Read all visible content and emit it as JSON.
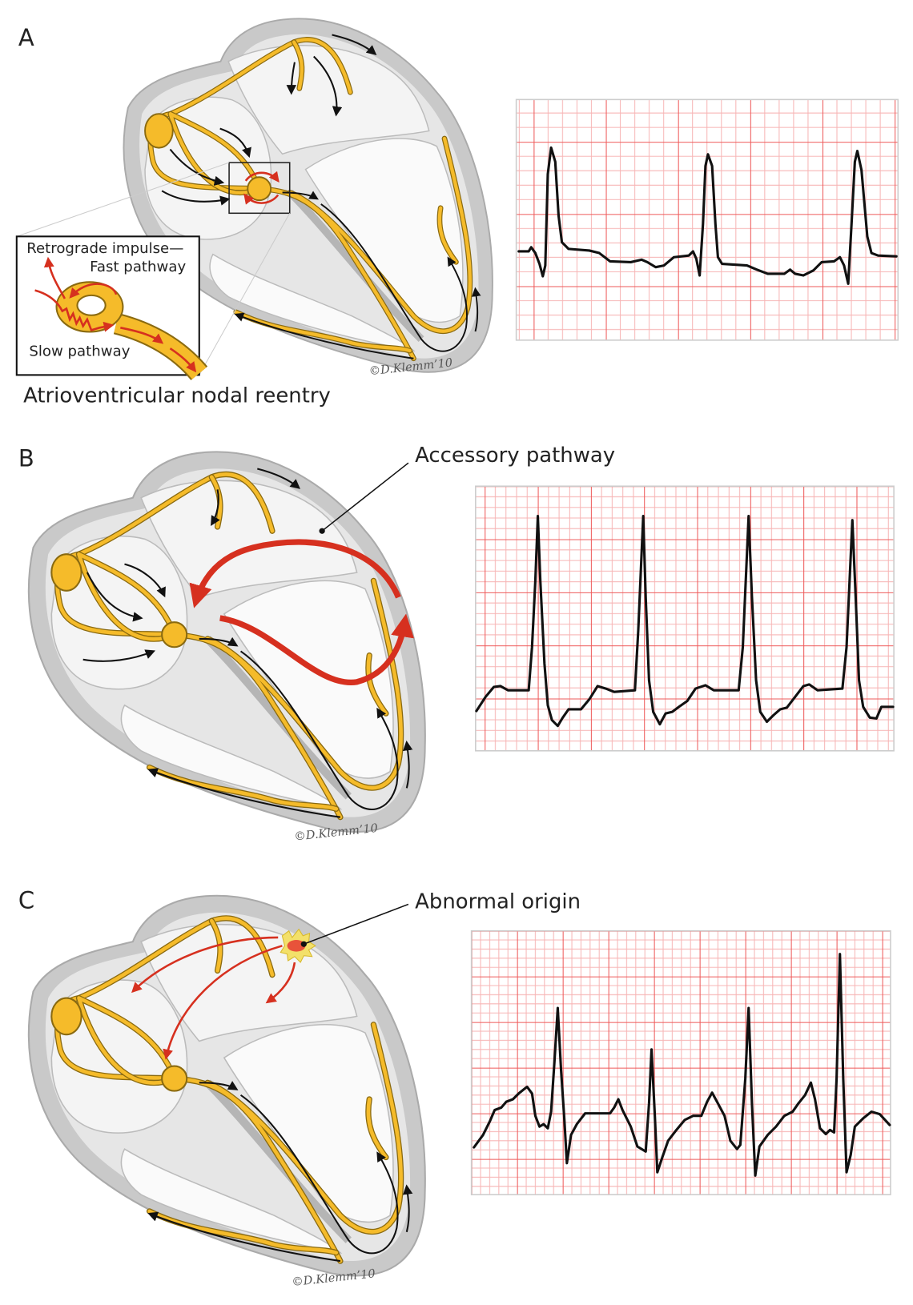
{
  "panels": [
    {
      "letter": "A",
      "caption": "Atrioventricular nodal reentry",
      "inset": {
        "line1": "Retrograde impulse—",
        "line2": "Fast pathway",
        "line3": "Slow pathway"
      },
      "signature": "©D.Klemm’10"
    },
    {
      "letter": "B",
      "callout": "Accessory pathway",
      "signature": "©D.Klemm’10"
    },
    {
      "letter": "C",
      "callout": "Abnormal origin",
      "signature": "©D.Klemm’10"
    }
  ],
  "colors": {
    "conduction": "#f5bb2a",
    "impulse_red": "#d6301f",
    "ecg_grid_major": "#ee5a5a",
    "ecg_grid_minor": "#f7b5b5",
    "heart_wall": "#c9c9c9"
  }
}
